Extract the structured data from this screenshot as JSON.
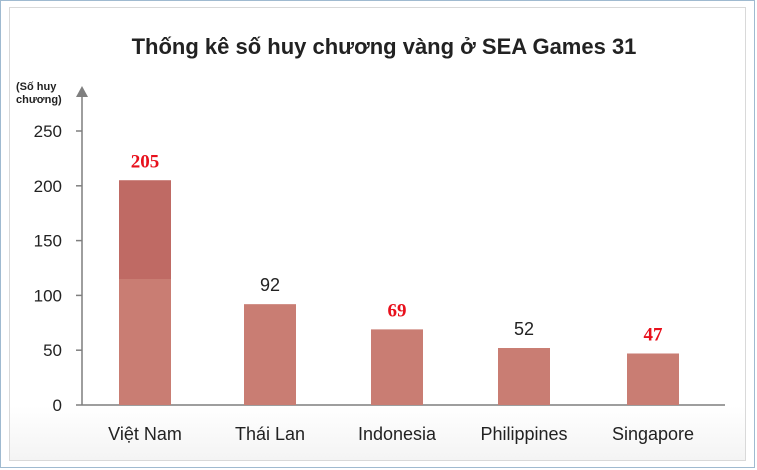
{
  "colors": {
    "bar": "#c97d73",
    "bar_top": "#bf6a64",
    "axis": "#7f7f7f",
    "label_red": "#e8101c",
    "label_dark": "#222222"
  },
  "chart_data": {
    "type": "bar",
    "title": "Thống kê số huy chương vàng ở SEA Games 31",
    "ylabel_lines": [
      "(Số huy",
      "chương)"
    ],
    "xlabel": "",
    "categories": [
      "Việt Nam",
      "Thái Lan",
      "Indonesia",
      "Philippines",
      "Singapore"
    ],
    "values": [
      205,
      92,
      69,
      52,
      47
    ],
    "value_label_colors": [
      "red",
      "dark",
      "red",
      "dark",
      "red"
    ],
    "yticks": [
      0,
      50,
      100,
      150,
      200,
      250
    ],
    "ylim": [
      0,
      250
    ],
    "grid": false,
    "legend": "none"
  }
}
